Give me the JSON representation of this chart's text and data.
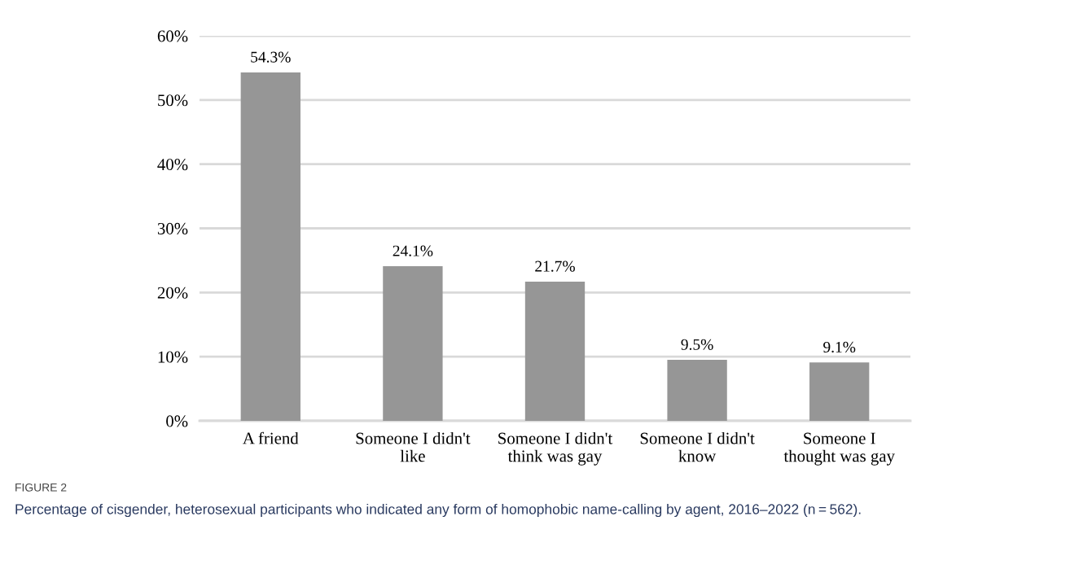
{
  "chart_data": {
    "type": "bar",
    "categories": [
      "A friend",
      "Someone I didn't\nlike",
      "Someone I didn't\nthink was gay",
      "Someone I didn't\nknow",
      "Someone I\nthought was gay"
    ],
    "values": [
      54.3,
      24.1,
      21.7,
      9.5,
      9.1
    ],
    "value_labels": [
      "54.3%",
      "24.1%",
      "21.7%",
      "9.5%",
      "9.1%"
    ],
    "color": "#969696",
    "ylim": [
      0,
      60
    ],
    "yticks": [
      {
        "value": 0,
        "label": "0%"
      },
      {
        "value": 10,
        "label": "10%"
      },
      {
        "value": 20,
        "label": "20%"
      },
      {
        "value": 30,
        "label": "30%"
      },
      {
        "value": 40,
        "label": "40%"
      },
      {
        "value": 50,
        "label": "50%"
      },
      {
        "value": 60,
        "label": "60%"
      }
    ],
    "grid": "y",
    "annotations": [
      "FIGURE 2",
      "Percentage of cisgender, heterosexual participants who indicated any form of homophobic name-calling by agent, 2016–2022 (n = 562)."
    ]
  }
}
